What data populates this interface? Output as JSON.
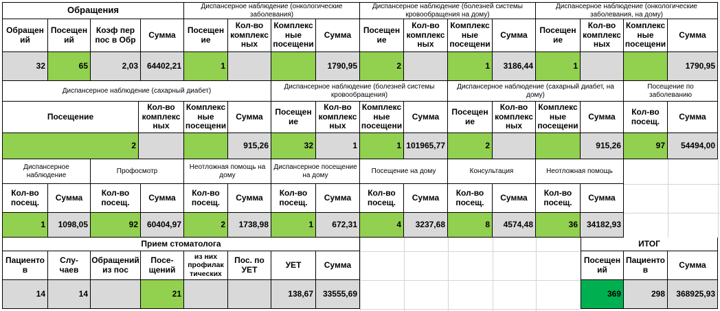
{
  "colors": {
    "green": "#92d050",
    "dark_green": "#00b050",
    "gray": "#d9d9d9"
  },
  "row1": {
    "g1_title": "Обращения",
    "g2_title": "Диспансерное наблюдение (онкологические заболевания)",
    "g3_title": "Диспансерное наблюдение (болезней системы кровообращения на дому)",
    "g4_title": "Диспансерное наблюдение (онкологические заболевания, на дому)",
    "headers": [
      "Обращен ий",
      "Посещен ий",
      "Коэф пер пос в Обр",
      "Сумма",
      "Посещен ие",
      "Кол-во комплекс ных",
      "Комплекс ные посещени",
      "Сумма",
      "Посещен ие",
      "Кол-во комплекс ных",
      "Комплекс ные посещени",
      "Сумма",
      "Посещен ие",
      "Кол-во комплекс ных",
      "Комплекс ные посещени",
      "Сумма"
    ],
    "values": [
      "32",
      "65",
      "2,03",
      "64402,21",
      "1",
      "",
      "",
      "1790,95",
      "2",
      "",
      "1",
      "3186,44",
      "1",
      "",
      "",
      "1790,95"
    ]
  },
  "row2": {
    "g1_title": "Диспансерное наблюдение (сахарный диабет)",
    "g2_title": "Диспансерное наблюдение (болезней системы кровообращения)",
    "g3_title": "Диспансерное наблюдение (сахарный диабет, на дому)",
    "g4_title": "Посещение по заболеванию",
    "headers": [
      "Посещение",
      "Кол-во комплекс ных",
      "Комплекс ные посещени",
      "Сумма",
      "Посещен ие",
      "Кол-во комплекс ных",
      "Комплекс ные посещени",
      "Сумма",
      "Посещен ие",
      "Кол-во комплекс ных",
      "Комплекс ные посещени",
      "Сумма",
      "Кол-во посещ.",
      "Сумма"
    ],
    "values": [
      "2",
      "",
      "",
      "915,26",
      "32",
      "1",
      "1",
      "101965,77",
      "2",
      "",
      "",
      "915,26",
      "97",
      "54494,00"
    ]
  },
  "row3": {
    "titles": [
      "Диспансерное наблюдение",
      "Профосмотр",
      "Неотложная помощь на дому",
      "Диспансерное посещение на дому",
      "Посещение на дому",
      "Консультация",
      "Неотложная помощь"
    ],
    "headers": [
      "Кол-во посещ.",
      "Сумма",
      "Кол-во посещ.",
      "Сумма",
      "Кол-во посещ.",
      "Сумма",
      "Кол-во посещ.",
      "Сумма",
      "Кол-во посещ.",
      "Сумма",
      "Кол-во посещ.",
      "Сумма",
      "Кол-во посещ.",
      "Сумма"
    ],
    "values": [
      "1",
      "1098,05",
      "92",
      "60404,97",
      "2",
      "1738,98",
      "1",
      "672,31",
      "4",
      "3237,68",
      "8",
      "4574,48",
      "36",
      "34182,93"
    ]
  },
  "dental": {
    "title": "Прием стоматолога",
    "headers": [
      "Пациенто в",
      "Слу- чаев",
      "Обращений из пос",
      "Посе- щений",
      "из них профилак тических",
      "Пос. по УЕТ",
      "УЕТ",
      "Сумма"
    ],
    "values": [
      "14",
      "14",
      "",
      "21",
      "",
      "",
      "138,67",
      "33555,69"
    ]
  },
  "total": {
    "title": "ИТОГ",
    "headers": [
      "Посещен ий",
      "Пациенто в",
      "Сумма"
    ],
    "values": [
      "369",
      "298",
      "368925,93"
    ]
  }
}
